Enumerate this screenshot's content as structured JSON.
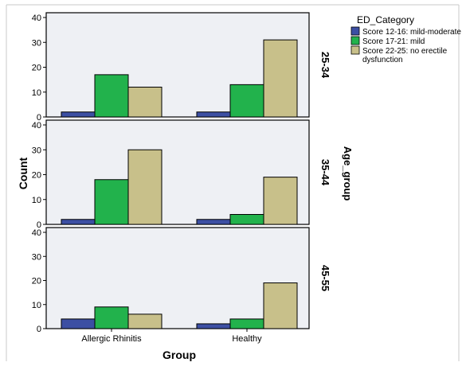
{
  "chart_data": {
    "type": "bar",
    "xlabel": "Group",
    "ylabel": "Count",
    "facet_label": "Age_group",
    "categories": [
      "Allergic Rhinitis",
      "Healthy"
    ],
    "legend": {
      "title": "ED_Category",
      "placement": "top-right",
      "entries": [
        {
          "label_lines": [
            "Score 12-16: mild-moderate"
          ],
          "color": "#3c4fa3"
        },
        {
          "label_lines": [
            "Score 17-21: mild"
          ],
          "color": "#22b24c"
        },
        {
          "label_lines": [
            "Score 22-25: no erectile",
            "dysfunction"
          ],
          "color": "#c8c08a"
        }
      ]
    },
    "ylim": [
      0,
      40
    ],
    "yticks": [
      "0",
      "10",
      "20",
      "30",
      "40"
    ],
    "grid": false,
    "panels": [
      {
        "facet": "25-34",
        "series": [
          {
            "values": [
              2,
              2
            ]
          },
          {
            "values": [
              17,
              13
            ]
          },
          {
            "values": [
              12,
              31
            ]
          }
        ]
      },
      {
        "facet": "35-44",
        "series": [
          {
            "values": [
              2,
              2
            ]
          },
          {
            "values": [
              18,
              4
            ]
          },
          {
            "values": [
              30,
              19
            ]
          }
        ]
      },
      {
        "facet": "45-55",
        "series": [
          {
            "values": [
              4,
              2
            ]
          },
          {
            "values": [
              9,
              4
            ]
          },
          {
            "values": [
              6,
              19
            ]
          }
        ]
      }
    ]
  }
}
